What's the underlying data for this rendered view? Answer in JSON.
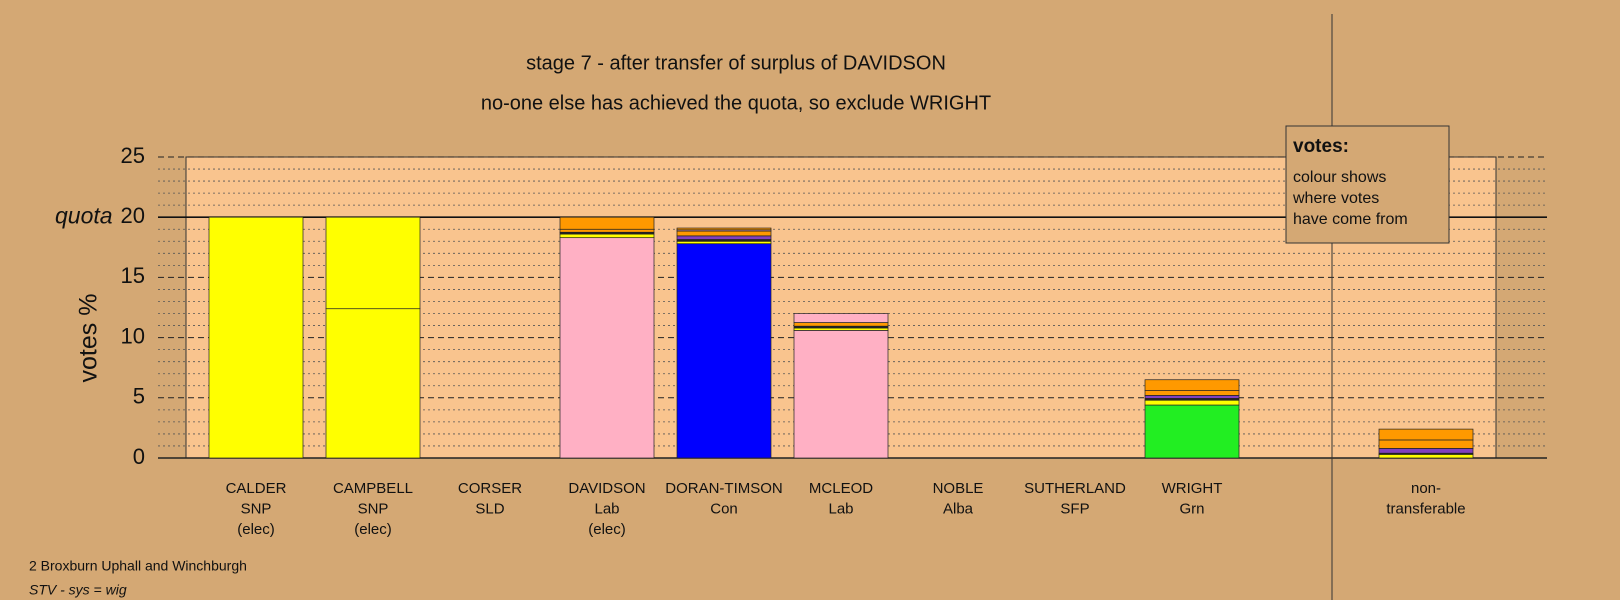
{
  "chart_data": {
    "type": "stacked_bar",
    "title": "stage 7 - after transfer of surplus of DAVIDSON",
    "subtitle": "no-one else has achieved the quota, so exclude WRIGHT",
    "y_label": "votes %",
    "quota": 20,
    "quota_label": "quota",
    "ylim": [
      0,
      25
    ],
    "yticks": [
      0,
      5,
      10,
      15,
      20,
      25
    ],
    "yminor_ticks": [
      1,
      2,
      3,
      4,
      6,
      7,
      8,
      9,
      11,
      12,
      13,
      14,
      16,
      17,
      18,
      19,
      21,
      22,
      23,
      24
    ],
    "grid": true,
    "categories": [
      [
        "CALDER",
        "SNP",
        "(elec)"
      ],
      [
        "CAMPBELL",
        "SNP",
        "(elec)"
      ],
      [
        "CORSER",
        "SLD"
      ],
      [
        "DAVIDSON",
        "Lab",
        "(elec)"
      ],
      [
        "DORAN-TIMSON",
        "Con"
      ],
      [
        "MCLEOD",
        "Lab"
      ],
      [
        "NOBLE",
        "Alba"
      ],
      [
        "SUTHERLAND",
        "SFP"
      ],
      [
        "WRIGHT",
        "Grn"
      ],
      [
        "non-",
        "transferable"
      ]
    ],
    "series": [
      {
        "colors": [
          "#ffff00",
          "#ffff00",
          "#ff9900",
          "#ffb0c4",
          "#0000ff",
          "#ffb0c4",
          "#222222",
          "#8040c0",
          "#22ee22",
          "#cccccc"
        ],
        "values": [
          20,
          12.4,
          0,
          18.3,
          17.8,
          10.6,
          0,
          0,
          4.4,
          0
        ]
      },
      {
        "color": "#ffff00",
        "values": [
          0,
          7.6,
          0,
          0.3,
          0.2,
          0.2,
          0,
          0,
          0.4,
          0.3
        ]
      },
      {
        "color": "#222222",
        "values": [
          0,
          0,
          0,
          0.15,
          0.15,
          0.15,
          0,
          0,
          0.15,
          0.1
        ]
      },
      {
        "color": "#8040c0",
        "values": [
          0,
          0,
          0,
          0,
          0.3,
          0,
          0,
          0,
          0.25,
          0.4
        ]
      },
      {
        "color": "#ff9900",
        "values": [
          0,
          0,
          0,
          0.25,
          0.4,
          0.3,
          0,
          0,
          0.4,
          0.7
        ]
      },
      {
        "color": "#ffb0c4",
        "values": [
          0,
          0,
          0,
          0,
          0.1,
          0.75,
          0,
          0,
          0,
          0
        ]
      },
      {
        "color": "#ff9900",
        "values": [
          0,
          0,
          0,
          1.0,
          0.15,
          0,
          0,
          0,
          0.9,
          0.9
        ]
      }
    ],
    "legend_box": {
      "title": "votes:",
      "lines": [
        "colour shows",
        "where votes",
        "have come from"
      ]
    },
    "footer": [
      "2 Broxburn Uphall and Winchburgh",
      "STV - sys = wig"
    ]
  }
}
